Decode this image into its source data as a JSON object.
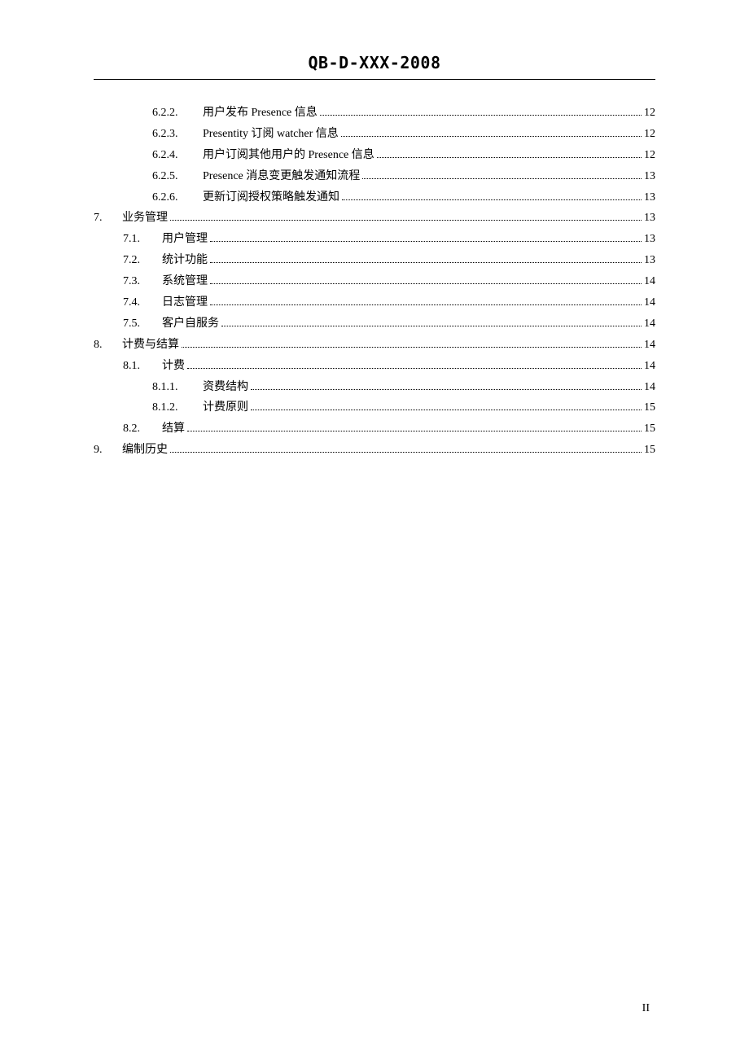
{
  "header": "QB-D-XXX-2008",
  "page_number": "II",
  "toc_entries": [
    {
      "level": 3,
      "number": "6.2.2.",
      "text": "用户发布 Presence 信息 ",
      "page": "12"
    },
    {
      "level": 3,
      "number": "6.2.3.",
      "text": "Presentity 订阅 watcher 信息",
      "page": "12"
    },
    {
      "level": 3,
      "number": "6.2.4.",
      "text": "用户订阅其他用户的 Presence 信息 ",
      "page": "12"
    },
    {
      "level": 3,
      "number": "6.2.5.",
      "text": "Presence 消息变更触发通知流程 ",
      "page": "13"
    },
    {
      "level": 3,
      "number": "6.2.6.",
      "text": "更新订阅授权策略触发通知",
      "page": "13"
    },
    {
      "level": 1,
      "number": "7.",
      "text": "业务管理",
      "page": "13"
    },
    {
      "level": 2,
      "number": "7.1.",
      "text": "用户管理",
      "page": "13"
    },
    {
      "level": 2,
      "number": "7.2.",
      "text": "统计功能",
      "page": "13"
    },
    {
      "level": 2,
      "number": "7.3.",
      "text": "系统管理",
      "page": "14"
    },
    {
      "level": 2,
      "number": "7.4.",
      "text": "日志管理",
      "page": "14"
    },
    {
      "level": 2,
      "number": "7.5.",
      "text": "客户自服务",
      "page": "14"
    },
    {
      "level": 1,
      "number": "8.",
      "text": "计费与结算",
      "page": "14"
    },
    {
      "level": 2,
      "number": "8.1.",
      "text": "计费",
      "page": "14"
    },
    {
      "level": 3,
      "number": "8.1.1.",
      "text": "资费结构",
      "page": "14"
    },
    {
      "level": 3,
      "number": "8.1.2.",
      "text": "计费原则",
      "page": "15"
    },
    {
      "level": 2,
      "number": "8.2.",
      "text": "结算",
      "page": "15"
    },
    {
      "level": 1,
      "number": "9.",
      "text": "编制历史",
      "page": "15"
    }
  ]
}
